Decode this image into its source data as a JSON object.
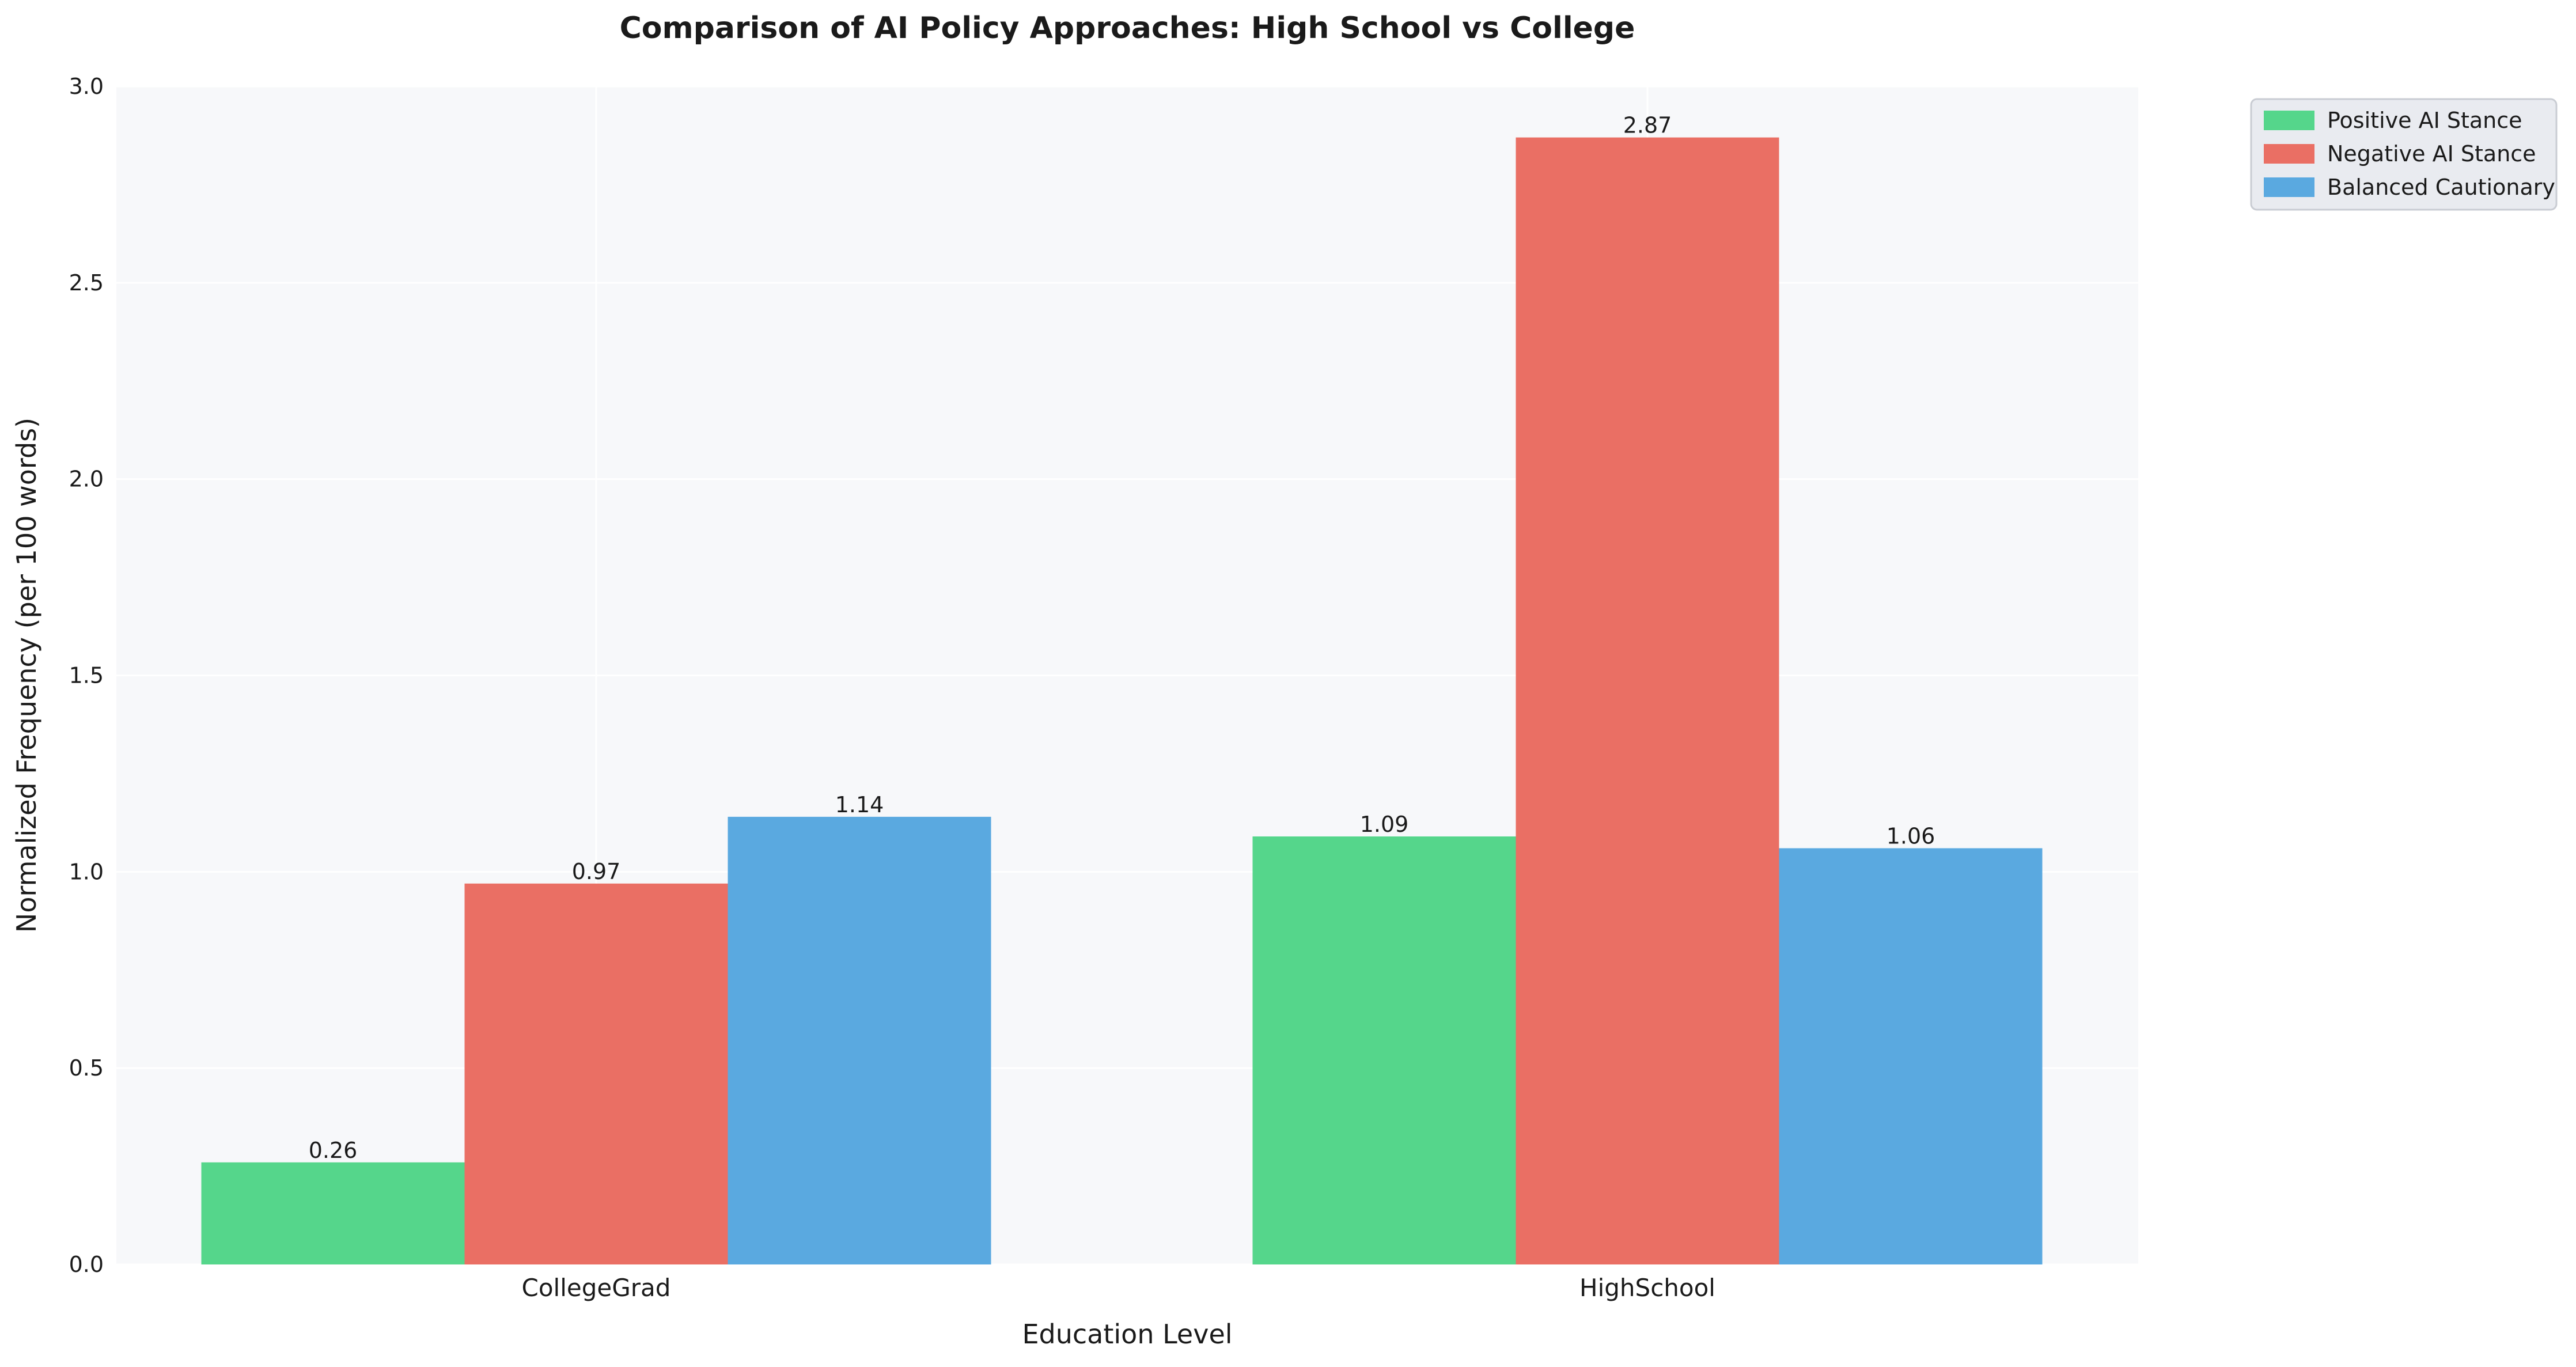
{
  "chart_data": {
    "type": "bar",
    "title": "Comparison of AI Policy Approaches: High School vs College",
    "xlabel": "Education Level",
    "ylabel": "Normalized Frequency (per 100 words)",
    "categories": [
      "CollegeGrad",
      "HighSchool"
    ],
    "series": [
      {
        "name": "Positive AI Stance",
        "values": [
          0.26,
          1.09
        ],
        "color": "#55d68b"
      },
      {
        "name": "Negative AI Stance",
        "values": [
          0.97,
          2.87
        ],
        "color": "#ea6f64"
      },
      {
        "name": "Balanced Cautionary",
        "values": [
          1.14,
          1.06
        ],
        "color": "#5aa9e0"
      }
    ],
    "data_labels": [
      [
        "0.26",
        "1.09"
      ],
      [
        "0.97",
        "2.87"
      ],
      [
        "1.14",
        "1.06"
      ]
    ],
    "ylim": [
      0,
      3.0
    ],
    "yticks": [
      0.0,
      0.5,
      1.0,
      1.5,
      2.0,
      2.5,
      3.0
    ],
    "ytick_labels": [
      "0.0",
      "0.5",
      "1.0",
      "1.5",
      "2.0",
      "2.5",
      "3.0"
    ],
    "grid": true,
    "legend_position": "top-right, outside plot",
    "colors": {
      "plot_background": "#f7f8fa",
      "grid": "#ffffff",
      "legend_background": "#e9ebf0",
      "legend_border": "#c9ccd3"
    }
  }
}
